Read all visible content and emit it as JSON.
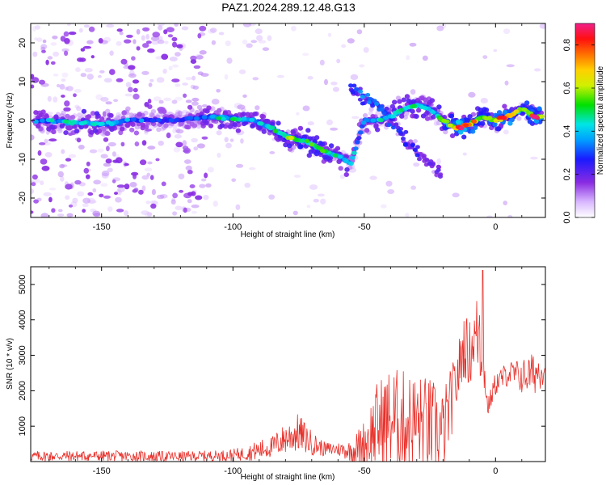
{
  "figure": {
    "title": "PAZ1.2024.289.12.48.G13"
  },
  "chart_data": [
    {
      "type": "heatmap",
      "title": "PAZ1.2024.289.12.48.G13",
      "xlabel": "Height of straight line (km)",
      "ylabel": "Frequency (Hz)",
      "xlim": [
        -177,
        19
      ],
      "ylim": [
        -25,
        25
      ],
      "xticks": [
        -150,
        -100,
        -50,
        0
      ],
      "yticks": [
        -20,
        -10,
        0,
        10,
        20
      ],
      "colorbar": {
        "label": "Normalized spectral amplitude",
        "range": [
          0,
          0.9
        ],
        "ticks": [
          0.0,
          0.2,
          0.4,
          0.6,
          0.8
        ],
        "colormap": "white-violet-blue-cyan-green-yellow-orange-red-magenta"
      },
      "ridge": {
        "x": [
          -175,
          -160,
          -150,
          -140,
          -130,
          -120,
          -110,
          -100,
          -92,
          -85,
          -80,
          -75,
          -70,
          -65,
          -60,
          -55,
          -50,
          -45,
          -40,
          -35,
          -30,
          -25,
          -20,
          -15,
          -10,
          -5,
          0,
          5,
          10,
          15,
          18
        ],
        "y": [
          0,
          -0.5,
          -1,
          0,
          0,
          0,
          1,
          0.5,
          0,
          -2,
          -4,
          -5,
          -6,
          -8,
          -9,
          -11,
          0,
          0,
          1,
          3,
          4,
          3,
          0,
          -2,
          -1,
          1,
          0,
          1,
          3,
          1,
          1
        ],
        "amplitude": [
          0.35,
          0.45,
          0.45,
          0.35,
          0.3,
          0.25,
          0.4,
          0.45,
          0.45,
          0.45,
          0.55,
          0.55,
          0.5,
          0.5,
          0.45,
          0.4,
          0.35,
          0.4,
          0.45,
          0.45,
          0.45,
          0.4,
          0.5,
          0.9,
          0.8,
          0.55,
          0.75,
          0.75,
          0.55,
          0.8,
          0.8
        ]
      },
      "secondary_ridge": {
        "x": [
          -55,
          -50,
          -45,
          -40,
          -35,
          -30,
          -25,
          -20
        ],
        "y": [
          8,
          6,
          4,
          0,
          -4,
          -8,
          -11,
          -14
        ],
        "amplitude": [
          0.3,
          0.35,
          0.35,
          0.3,
          0.25,
          0.25,
          0.2,
          0.2
        ]
      }
    },
    {
      "type": "line",
      "xlabel": "Height of straight line (km)",
      "ylabel": "SNR (10 * v/v)",
      "xlim": [
        -177,
        19
      ],
      "ylim": [
        0,
        5500
      ],
      "xticks": [
        -150,
        -100,
        -50,
        0
      ],
      "yticks": [
        1000,
        2000,
        3000,
        4000,
        5000
      ],
      "color": "#e8302a",
      "envelope": {
        "x": [
          -177,
          -150,
          -120,
          -105,
          -100,
          -95,
          -90,
          -85,
          -80,
          -75,
          -70,
          -65,
          -60,
          -55,
          -50,
          -45,
          -40,
          -35,
          -30,
          -25,
          -20,
          -15,
          -12,
          -10,
          -8,
          -6,
          -5,
          -4,
          -3,
          0,
          5,
          10,
          15,
          19
        ],
        "mean": [
          150,
          160,
          140,
          170,
          180,
          230,
          320,
          420,
          650,
          820,
          520,
          350,
          350,
          300,
          500,
          1000,
          1200,
          1100,
          1100,
          1000,
          800,
          2200,
          3300,
          3000,
          3500,
          3700,
          3000,
          2400,
          1500,
          2200,
          2500,
          2400,
          2500,
          2700
        ],
        "spread": [
          150,
          150,
          150,
          150,
          180,
          200,
          300,
          300,
          450,
          550,
          350,
          200,
          200,
          300,
          700,
          1300,
          1500,
          1500,
          1400,
          1400,
          1200,
          900,
          900,
          1000,
          800,
          1700,
          900,
          600,
          250,
          350,
          350,
          500,
          600,
          500
        ]
      }
    }
  ]
}
